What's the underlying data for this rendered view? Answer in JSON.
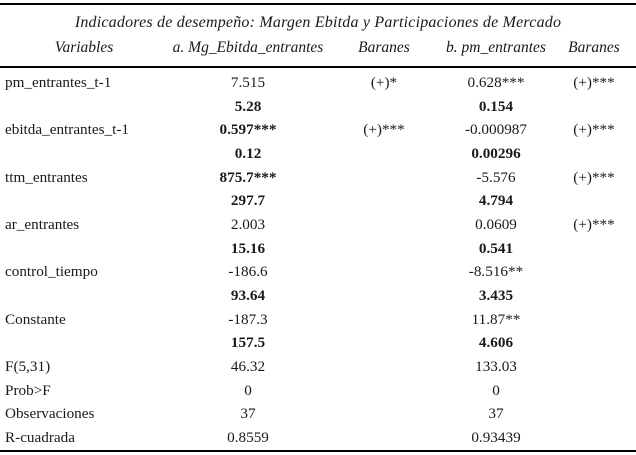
{
  "title": "Indicadores de desempeño: Margen Ebitda y Participaciones de Mercado",
  "colors": {
    "text": "#1a1a1a",
    "rule": "#000000",
    "background": "#ffffff"
  },
  "table": {
    "columns": [
      "Variables",
      "a. Mg_Ebitda_entrantes",
      "Baranes",
      "b. pm_entrantes",
      "Baranes"
    ],
    "rows": [
      [
        {
          "t": "pm_entrantes_t-1"
        },
        {
          "t": "7.515"
        },
        {
          "t": "(+)*"
        },
        {
          "t": "0.628***"
        },
        {
          "t": "(+)***"
        }
      ],
      [
        {
          "t": ""
        },
        {
          "t": "5.28",
          "b": true
        },
        {
          "t": ""
        },
        {
          "t": "0.154",
          "b": true
        },
        {
          "t": ""
        }
      ],
      [
        {
          "t": "ebitda_entrantes_t-1"
        },
        {
          "t": "0.597***",
          "b": true
        },
        {
          "t": "(+)***"
        },
        {
          "t": "-0.000987"
        },
        {
          "t": "(+)***"
        }
      ],
      [
        {
          "t": ""
        },
        {
          "t": "0.12",
          "b": true
        },
        {
          "t": ""
        },
        {
          "t": "0.00296",
          "b": true
        },
        {
          "t": ""
        }
      ],
      [
        {
          "t": "ttm_entrantes"
        },
        {
          "t": "875.7***",
          "b": true
        },
        {
          "t": ""
        },
        {
          "t": "-5.576"
        },
        {
          "t": "(+)***"
        }
      ],
      [
        {
          "t": ""
        },
        {
          "t": "297.7",
          "b": true
        },
        {
          "t": ""
        },
        {
          "t": "4.794",
          "b": true
        },
        {
          "t": ""
        }
      ],
      [
        {
          "t": "ar_entrantes"
        },
        {
          "t": "2.003"
        },
        {
          "t": ""
        },
        {
          "t": "0.0609"
        },
        {
          "t": "(+)***"
        }
      ],
      [
        {
          "t": ""
        },
        {
          "t": "15.16",
          "b": true
        },
        {
          "t": ""
        },
        {
          "t": "0.541",
          "b": true
        },
        {
          "t": ""
        }
      ],
      [
        {
          "t": "control_tiempo"
        },
        {
          "t": "-186.6"
        },
        {
          "t": ""
        },
        {
          "t": "-8.516**"
        },
        {
          "t": ""
        }
      ],
      [
        {
          "t": ""
        },
        {
          "t": "93.64",
          "b": true
        },
        {
          "t": ""
        },
        {
          "t": "3.435",
          "b": true
        },
        {
          "t": ""
        }
      ],
      [
        {
          "t": "Constante"
        },
        {
          "t": "-187.3"
        },
        {
          "t": ""
        },
        {
          "t": "11.87**"
        },
        {
          "t": ""
        }
      ],
      [
        {
          "t": ""
        },
        {
          "t": "157.5",
          "b": true
        },
        {
          "t": ""
        },
        {
          "t": "4.606",
          "b": true
        },
        {
          "t": ""
        }
      ],
      [
        {
          "t": "F(5,31)"
        },
        {
          "t": "46.32"
        },
        {
          "t": ""
        },
        {
          "t": "133.03"
        },
        {
          "t": ""
        }
      ],
      [
        {
          "t": "Prob>F"
        },
        {
          "t": "0"
        },
        {
          "t": ""
        },
        {
          "t": "0"
        },
        {
          "t": ""
        }
      ],
      [
        {
          "t": "Observaciones"
        },
        {
          "t": "37"
        },
        {
          "t": ""
        },
        {
          "t": "37"
        },
        {
          "t": ""
        }
      ],
      [
        {
          "t": "R-cuadrada"
        },
        {
          "t": "0.8559"
        },
        {
          "t": ""
        },
        {
          "t": "0.93439"
        },
        {
          "t": ""
        }
      ]
    ]
  }
}
